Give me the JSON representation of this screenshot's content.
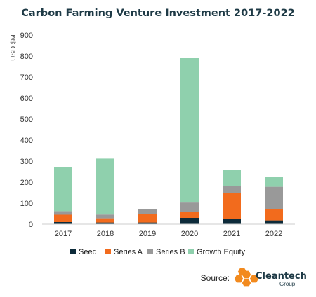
{
  "chart_data": {
    "type": "bar",
    "stacked": true,
    "title": "Carbon Farming Venture Investment 2017-2022",
    "ylabel": "USD $M",
    "xlabel": "",
    "ylim": [
      0,
      900
    ],
    "yticks": [
      0,
      100,
      200,
      300,
      400,
      500,
      600,
      700,
      800,
      900
    ],
    "categories": [
      "2017",
      "2018",
      "2019",
      "2020",
      "2021",
      "2022"
    ],
    "series": [
      {
        "name": "Seed",
        "color": "#0d2b3a",
        "values": [
          10,
          8,
          8,
          30,
          25,
          18
        ]
      },
      {
        "name": "Series A",
        "color": "#f26b1d",
        "values": [
          35,
          20,
          40,
          27,
          122,
          52
        ]
      },
      {
        "name": "Series B",
        "color": "#999999",
        "values": [
          17,
          18,
          22,
          46,
          35,
          108
        ]
      },
      {
        "name": "Growth Equity",
        "color": "#8fd0ad",
        "values": [
          208,
          266,
          0,
          687,
          76,
          46
        ]
      }
    ],
    "grid": false,
    "legend": "bottom"
  },
  "source": {
    "label": "Source:",
    "brand": "Cleantech",
    "brand_sub": "Group",
    "logo_color": "#f28a1e"
  }
}
